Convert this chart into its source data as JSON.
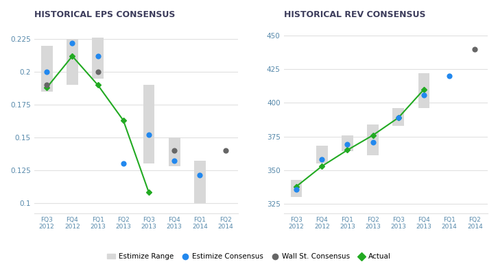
{
  "eps": {
    "title": "HISTORICAL EPS CONSENSUS",
    "categories": [
      "FQ3\n2012",
      "FQ4\n2012",
      "FQ1\n2013",
      "FQ2\n2013",
      "FQ3\n2013",
      "FQ4\n2013",
      "FQ1\n2014",
      "FQ2\n2014"
    ],
    "estimize_range": [
      [
        0.185,
        0.22
      ],
      [
        0.19,
        0.225
      ],
      [
        0.195,
        0.226
      ],
      [
        null,
        null
      ],
      [
        0.13,
        0.19
      ],
      [
        0.128,
        0.15
      ],
      [
        0.1,
        0.132
      ],
      [
        null,
        null
      ]
    ],
    "estimize_consensus": [
      0.2,
      0.222,
      0.212,
      0.13,
      0.152,
      0.132,
      0.121,
      null
    ],
    "wall_st_consensus": [
      0.19,
      null,
      0.2,
      null,
      null,
      0.14,
      null,
      0.14
    ],
    "actual": [
      0.188,
      0.212,
      0.19,
      0.163,
      0.108,
      null,
      null,
      null
    ],
    "ylim": [
      0.092,
      0.236
    ],
    "yticks": [
      0.1,
      0.125,
      0.15,
      0.175,
      0.2,
      0.225
    ]
  },
  "rev": {
    "title": "HISTORICAL REV CONSENSUS",
    "categories": [
      "FQ3\n2012",
      "FQ4\n2012",
      "FQ1\n2013",
      "FQ2\n2013",
      "FQ3\n2013",
      "FQ4\n2013",
      "FQ1\n2014",
      "FQ2\n2014"
    ],
    "estimize_range": [
      [
        330,
        343
      ],
      [
        355,
        368
      ],
      [
        364,
        376
      ],
      [
        361,
        384
      ],
      [
        383,
        396
      ],
      [
        396,
        422
      ],
      [
        null,
        null
      ],
      [
        null,
        null
      ]
    ],
    "estimize_consensus": [
      336,
      358,
      369,
      371,
      389,
      406,
      420,
      null
    ],
    "wall_st_consensus": [
      null,
      null,
      null,
      null,
      null,
      null,
      null,
      440
    ],
    "actual": [
      338,
      353,
      365,
      376,
      389,
      410,
      null,
      null
    ],
    "ylim": [
      318,
      458
    ],
    "yticks": [
      325,
      350,
      375,
      400,
      425,
      450
    ]
  },
  "colors": {
    "title": "#3d3d5c",
    "estimize_range": "#d8d8d8",
    "estimize_consensus": "#2288ee",
    "wall_st_consensus": "#666666",
    "actual": "#22aa22",
    "axis_text": "#5588aa",
    "grid": "#e0e0e0"
  },
  "legend": {
    "estimize_range": "Estimize Range",
    "estimize_consensus": "Estimize Consensus",
    "wall_st_consensus": "Wall St. Consensus",
    "actual": "Actual"
  },
  "fig_width": 7.26,
  "fig_height": 3.86,
  "dpi": 100
}
